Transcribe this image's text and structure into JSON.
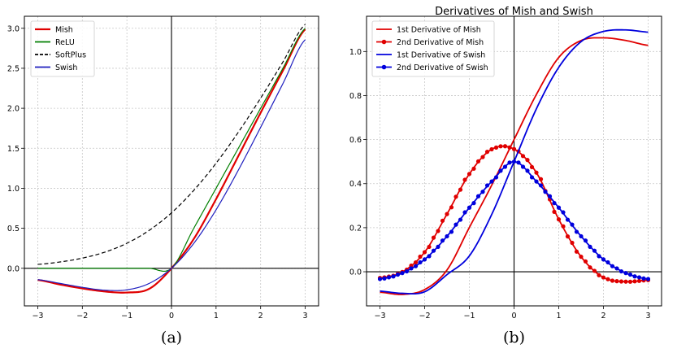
{
  "chart_data": [
    {
      "type": "line",
      "title": "",
      "xlabel": "",
      "ylabel": "",
      "xlim": [
        -3.3,
        3.3
      ],
      "ylim": [
        -0.47,
        3.15
      ],
      "xticks": [
        -3,
        -2,
        -1,
        0,
        1,
        2,
        3
      ],
      "yticks": [
        0.0,
        0.5,
        1.0,
        1.5,
        2.0,
        2.5,
        3.0
      ],
      "xtick_labels": [
        "−3",
        "−2",
        "−1",
        "0",
        "1",
        "2",
        "3"
      ],
      "ytick_labels": [
        "0.0",
        "0.5",
        "1.0",
        "1.5",
        "2.0",
        "2.5",
        "3.0"
      ],
      "grid": true,
      "legend_position": "top-left",
      "caption": "(a)",
      "x": [
        -3,
        -2.5,
        -2,
        -1.5,
        -1,
        -0.5,
        0,
        0.5,
        1,
        1.5,
        2,
        2.5,
        3
      ],
      "series": [
        {
          "name": "Mish",
          "color": "#e00000",
          "style": "solid",
          "values": [
            -0.146,
            -0.203,
            -0.252,
            -0.29,
            -0.303,
            -0.257,
            0.0,
            0.367,
            0.865,
            1.403,
            1.944,
            2.471,
            2.987
          ]
        },
        {
          "name": "ReLU",
          "color": "#007f00",
          "style": "solid",
          "values": [
            0,
            0,
            0,
            0,
            0,
            0,
            0,
            0.5,
            1.0,
            1.5,
            2.0,
            2.5,
            3.0
          ]
        },
        {
          "name": "SoftPlus",
          "color": "#000000",
          "style": "dashed",
          "values": [
            0.049,
            0.079,
            0.127,
            0.201,
            0.313,
            0.474,
            0.693,
            0.974,
            1.313,
            1.701,
            2.127,
            2.579,
            3.049
          ]
        },
        {
          "name": "Swish",
          "color": "#1f1fbf",
          "style": "solid",
          "values": [
            -0.142,
            -0.189,
            -0.238,
            -0.274,
            -0.269,
            -0.189,
            0.0,
            0.311,
            0.731,
            1.227,
            1.762,
            2.309,
            2.858
          ]
        }
      ]
    },
    {
      "type": "line",
      "title": "Derivatives of Mish and Swish",
      "xlabel": "",
      "ylabel": "",
      "xlim": [
        -3.3,
        3.3
      ],
      "ylim": [
        -0.155,
        1.16
      ],
      "xticks": [
        -3,
        -2,
        -1,
        0,
        1,
        2,
        3
      ],
      "yticks": [
        0.0,
        0.2,
        0.4,
        0.6,
        0.8,
        1.0
      ],
      "xtick_labels": [
        "−3",
        "−2",
        "−1",
        "0",
        "1",
        "2",
        "3"
      ],
      "ytick_labels": [
        "0.0",
        "0.2",
        "0.4",
        "0.6",
        "0.8",
        "1.0"
      ],
      "grid": true,
      "legend_position": "top-left",
      "caption": "(b)",
      "x": [
        -3,
        -2.5,
        -2,
        -1.5,
        -1,
        -0.5,
        0,
        0.5,
        1,
        1.5,
        2,
        2.5,
        3
      ],
      "series": [
        {
          "name": "1st Derivative of Mish",
          "color": "#e00000",
          "marker": "none",
          "values": [
            -0.093,
            -0.103,
            -0.081,
            0.008,
            0.201,
            0.393,
            0.6,
            0.805,
            0.973,
            1.05,
            1.062,
            1.05,
            1.028
          ]
        },
        {
          "name": "2nd Derivative of Mish",
          "color": "#e00000",
          "marker": "circle",
          "values": [
            -0.028,
            -0.001,
            0.089,
            0.262,
            0.444,
            0.556,
            0.557,
            0.45,
            0.238,
            0.068,
            -0.026,
            -0.045,
            -0.038
          ]
        },
        {
          "name": "1st Derivative of Swish",
          "color": "#0000dd",
          "marker": "none",
          "values": [
            -0.088,
            -0.098,
            -0.091,
            -0.013,
            0.072,
            0.26,
            0.5,
            0.74,
            0.928,
            1.045,
            1.091,
            1.098,
            1.088
          ]
        },
        {
          "name": "2nd Derivative of Swish",
          "color": "#0000dd",
          "marker": "circle",
          "values": [
            -0.033,
            -0.006,
            0.056,
            0.161,
            0.291,
            0.41,
            0.5,
            0.41,
            0.291,
            0.161,
            0.056,
            -0.006,
            -0.033
          ]
        }
      ]
    }
  ]
}
